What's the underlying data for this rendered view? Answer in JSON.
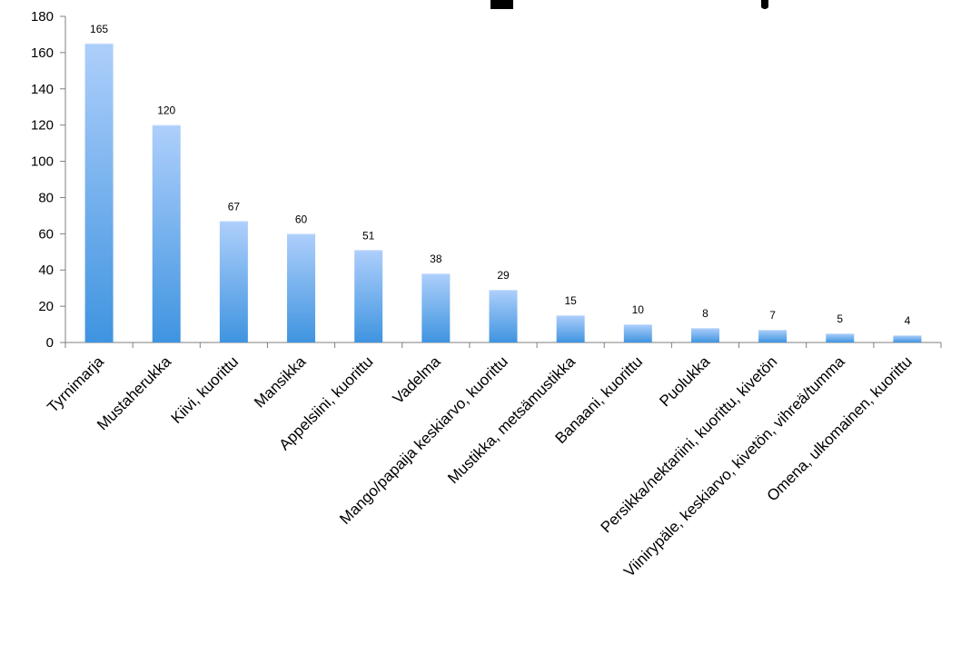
{
  "chart_data": {
    "type": "bar",
    "categories": [
      "Tyrnimarja",
      "Mustaherukka",
      "Kiivi, kuorittu",
      "Mansikka",
      "Appelsiini, kuorittu",
      "Vadelma",
      "Mango/papaija keskiarvo, kuorittu",
      "Mustikka, metsämustikka",
      "Banaani, kuorittu",
      "Puolukka",
      "Persikka/nektariini, kuorittu, kivetön",
      "Viinirypäle, keskiarvo, kivetön, vihreä/tumma",
      "Omena, ulkomainen, kuorittu"
    ],
    "values": [
      165,
      120,
      67,
      60,
      51,
      38,
      29,
      15,
      10,
      8,
      7,
      5,
      4
    ],
    "ylim": [
      0,
      180
    ],
    "yticks": [
      0,
      20,
      40,
      60,
      80,
      100,
      120,
      140,
      160,
      180
    ],
    "grid": false,
    "legend": "none",
    "bar_color_top": "#aecffb",
    "bar_color_bottom": "#3f94e0"
  }
}
